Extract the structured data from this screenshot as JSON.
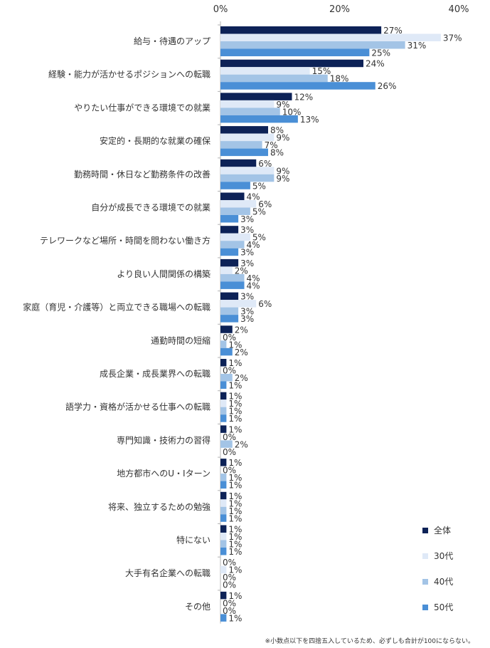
{
  "footnote": "※小数点以下を四捨五入しているため、必ずしも合計が100にならない。",
  "chart_data": {
    "type": "bar",
    "orientation": "horizontal",
    "xlim": [
      0,
      40
    ],
    "x_ticks": [
      "0%",
      "20%",
      "40%"
    ],
    "x_tick_values": [
      0,
      20,
      40
    ],
    "grid": false,
    "legend_position": "bottom-right",
    "categories": [
      "給与・待遇のアップ",
      "経験・能力が活かせるポジションへの転職",
      "やりたい仕事ができる環境での就業",
      "安定的・長期的な就業の確保",
      "勤務時間・休日など勤務条件の改善",
      "自分が成長できる環境での就業",
      "テレワークなど場所・時間を問わない働き方",
      "より良い人間関係の構築",
      "家庭（育児・介護等）と両立できる職場への転職",
      "通勤時間の短縮",
      "成長企業・成長業界への転職",
      "語学力・資格が活かせる仕事への転職",
      "専門知識・技術力の習得",
      "地方都市へのU・Iターン",
      "将来、独立するための勉強",
      "特にない",
      "大手有名企業への転職",
      "その他"
    ],
    "series": [
      {
        "name": "全体",
        "color": "#0d2257",
        "values": [
          27,
          24,
          12,
          8,
          6,
          4,
          3,
          3,
          3,
          2,
          1,
          1,
          1,
          1,
          1,
          1,
          0,
          1
        ]
      },
      {
        "name": "30代",
        "color": "#dfe9f7",
        "values": [
          37,
          15,
          9,
          9,
          9,
          6,
          5,
          2,
          6,
          0,
          0,
          1,
          0,
          0,
          1,
          1,
          1,
          0
        ]
      },
      {
        "name": "40代",
        "color": "#a3c4e6",
        "values": [
          31,
          18,
          10,
          7,
          9,
          5,
          4,
          4,
          3,
          1,
          2,
          1,
          2,
          1,
          1,
          1,
          0,
          0
        ]
      },
      {
        "name": "50代",
        "color": "#4a8fd6",
        "values": [
          25,
          26,
          13,
          8,
          5,
          3,
          3,
          4,
          3,
          2,
          1,
          1,
          0,
          1,
          1,
          1,
          0,
          1
        ]
      }
    ]
  }
}
